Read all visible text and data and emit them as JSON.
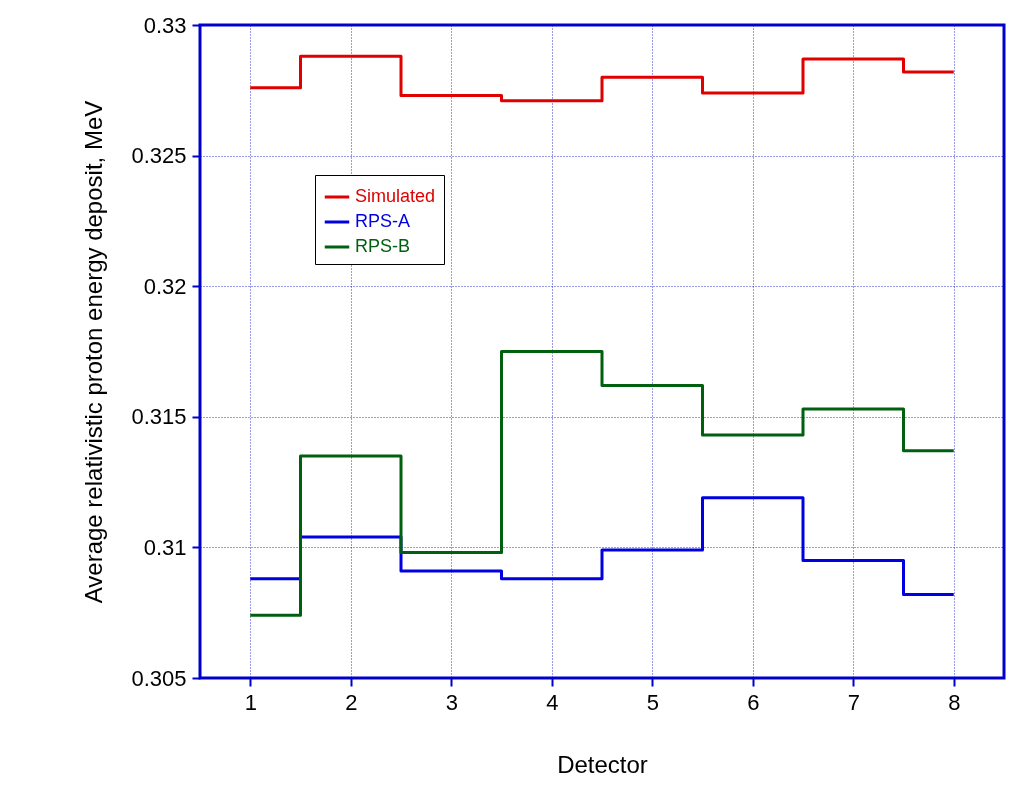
{
  "chart_data": {
    "type": "step",
    "xlabel": "Detector",
    "ylabel": "Average relativistic proton energy deposit, MeV",
    "x": [
      1,
      2,
      3,
      4,
      5,
      6,
      7,
      8
    ],
    "series": [
      {
        "name": "Simulated",
        "color": "#e00000",
        "values": [
          0.3276,
          0.3288,
          0.3273,
          0.3271,
          0.328,
          0.3274,
          0.3287,
          0.3282
        ]
      },
      {
        "name": "RPS-A",
        "color": "#0000e0",
        "values": [
          0.3088,
          0.3104,
          0.3091,
          0.3088,
          0.3099,
          0.3119,
          0.3095,
          0.3082
        ]
      },
      {
        "name": "RPS-B",
        "color": "#006010",
        "values": [
          0.3074,
          0.3135,
          0.3098,
          0.3175,
          0.3162,
          0.3143,
          0.3153,
          0.3137
        ]
      }
    ],
    "xlim": [
      0.5,
      8.5
    ],
    "xticks": [
      1,
      2,
      3,
      4,
      5,
      6,
      7,
      8
    ],
    "ylim": [
      0.305,
      0.33
    ],
    "yticks": [
      0.305,
      0.31,
      0.315,
      0.32,
      0.325,
      0.33
    ],
    "grid": true,
    "legend": "top left",
    "line_style": "solid"
  }
}
